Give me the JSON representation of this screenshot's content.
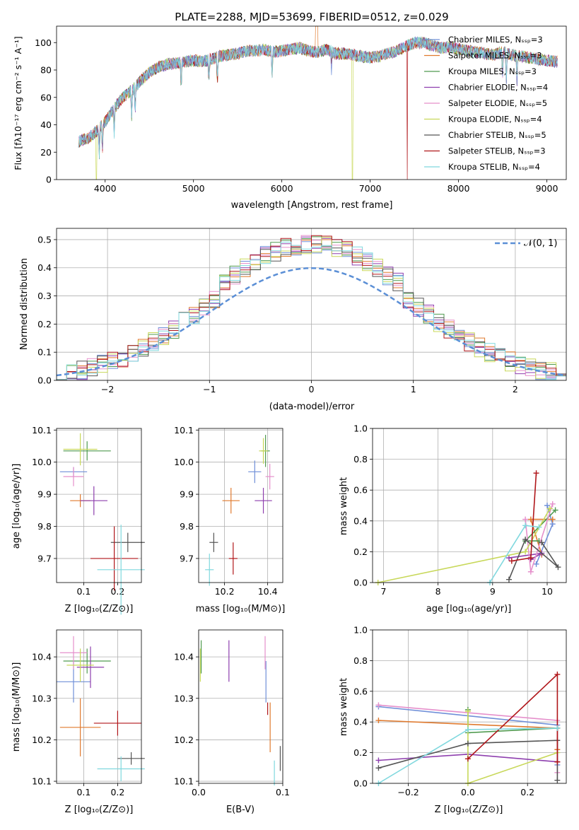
{
  "colors": [
    "#6f8fd8",
    "#e07a2e",
    "#4f9a4f",
    "#8e3fae",
    "#e58fcb",
    "#c8d85a",
    "#555555",
    "#b0161a",
    "#7fd8de"
  ],
  "normal_color": "#5b8fd6",
  "spectrum": {
    "type": "line",
    "title": "PLATE=2288, MJD=53699, FIBERID=0512, z=0.029",
    "xlabel": "wavelength [Angstrom, rest frame]",
    "ylabel": "Flux [fλ10⁻¹⁷ erg cm⁻² s⁻¹ A⁻¹]",
    "xlim": [
      3450,
      9220
    ],
    "ylim": [
      0,
      112
    ],
    "xticks": [
      "4000",
      "5000",
      "6000",
      "7000",
      "8000",
      "9000"
    ],
    "yticks": [
      "0",
      "20",
      "40",
      "60",
      "80",
      "100"
    ],
    "legend_position": "top-right",
    "legend": [
      "Chabrier MILES, Nₛₛₚ=3",
      "Salpeter MILES, Nₛₛₚ=3",
      "Kroupa MILES, Nₛₛₚ=3",
      "Chabrier ELODIE, Nₛₛₚ=4",
      "Salpeter ELODIE, Nₛₛₚ=5",
      "Kroupa ELODIE, Nₛₛₚ=4",
      "Chabrier STELIB, Nₛₛₚ=5",
      "Salpeter STELIB, Nₛₛₚ=3",
      "Kroupa STELIB, Nₛₛₚ=4"
    ],
    "continuum": [
      [
        3700,
        28
      ],
      [
        3800,
        30
      ],
      [
        3900,
        35
      ],
      [
        4000,
        42
      ],
      [
        4100,
        52
      ],
      [
        4200,
        60
      ],
      [
        4300,
        65
      ],
      [
        4400,
        72
      ],
      [
        4500,
        78
      ],
      [
        4600,
        82
      ],
      [
        4700,
        84
      ],
      [
        4800,
        85
      ],
      [
        4900,
        86
      ],
      [
        5000,
        87
      ],
      [
        5100,
        86
      ],
      [
        5200,
        88
      ],
      [
        5300,
        90
      ],
      [
        5400,
        91
      ],
      [
        5500,
        92
      ],
      [
        5600,
        94
      ],
      [
        5700,
        94
      ],
      [
        5800,
        95
      ],
      [
        5900,
        93
      ],
      [
        6000,
        94
      ],
      [
        6100,
        95
      ],
      [
        6200,
        96
      ],
      [
        6300,
        94
      ],
      [
        6400,
        93
      ],
      [
        6500,
        95
      ],
      [
        6600,
        92
      ],
      [
        6700,
        92
      ],
      [
        6800,
        91
      ],
      [
        6900,
        90
      ],
      [
        7000,
        89
      ],
      [
        7100,
        90
      ],
      [
        7200,
        92
      ],
      [
        7300,
        94
      ],
      [
        7400,
        97
      ],
      [
        7500,
        100
      ],
      [
        7600,
        100
      ],
      [
        7700,
        98
      ],
      [
        7800,
        96
      ],
      [
        7900,
        97
      ],
      [
        8000,
        95
      ],
      [
        8100,
        94
      ],
      [
        8200,
        93
      ],
      [
        8300,
        92
      ],
      [
        8400,
        91
      ],
      [
        8500,
        93
      ],
      [
        8600,
        91
      ],
      [
        8700,
        90
      ],
      [
        8800,
        89
      ],
      [
        8900,
        88
      ],
      [
        9000,
        87
      ],
      [
        9100,
        86
      ]
    ]
  },
  "histogram": {
    "type": "bar",
    "xlabel": "(data-model)/error",
    "ylabel": "Normed distribution",
    "xlim": [
      -2.5,
      2.5
    ],
    "ylim": [
      0,
      0.54
    ],
    "xticks": [
      "−2",
      "−1",
      "0",
      "1",
      "2"
    ],
    "yticks": [
      "0.0",
      "0.1",
      "0.2",
      "0.3",
      "0.4",
      "0.5"
    ],
    "legend": "𝒩(0, 1)",
    "legend_position": "top-right",
    "bin_width": 0.1,
    "bins_left": -2.5
  },
  "age_vs_Z": {
    "type": "scatter",
    "xlabel": "Z [log₁₀(Z/Z⊙)]",
    "ylabel": "age  [log₁₀(age/yr)]",
    "xlim": [
      0.02,
      0.27
    ],
    "ylim": [
      9.625,
      10.105
    ],
    "xticks": [
      "0.1",
      "0.2"
    ],
    "yticks": [
      "9.7",
      "9.8",
      "9.9",
      "10.0",
      "10.1"
    ],
    "points": [
      {
        "x": 0.07,
        "y": 9.97,
        "xe": 0.04,
        "ye": 0.015
      },
      {
        "x": 0.09,
        "y": 9.88,
        "xe": 0.03,
        "ye": 0.02
      },
      {
        "x": 0.11,
        "y": 10.035,
        "xe": 0.07,
        "ye": 0.03
      },
      {
        "x": 0.13,
        "y": 9.88,
        "xe": 0.04,
        "ye": 0.045
      },
      {
        "x": 0.07,
        "y": 9.955,
        "xe": 0.03,
        "ye": 0.03
      },
      {
        "x": 0.09,
        "y": 10.04,
        "xe": 0.05,
        "ye": 0.05
      },
      {
        "x": 0.23,
        "y": 9.75,
        "xe": 0.05,
        "ye": 0.03
      },
      {
        "x": 0.19,
        "y": 9.7,
        "xe": 0.07,
        "ye": 0.1
      },
      {
        "x": 0.21,
        "y": 9.665,
        "xe": 0.07,
        "ye": 0.14
      }
    ]
  },
  "age_vs_mass": {
    "type": "scatter",
    "xlabel": "mass [log₁₀(M/M⊙)]",
    "ylabel": "",
    "xlim": [
      10.08,
      10.47
    ],
    "ylim": [
      9.625,
      10.105
    ],
    "xticks": [
      "10.2",
      "10.4"
    ],
    "yticks": [
      "9.7",
      "9.8",
      "9.9",
      "10.0",
      "10.1"
    ],
    "points": [
      {
        "x": 10.34,
        "y": 9.97,
        "xe": 0.03,
        "ye": 0.035
      },
      {
        "x": 10.23,
        "y": 9.88,
        "xe": 0.04,
        "ye": 0.04
      },
      {
        "x": 10.39,
        "y": 10.035,
        "xe": 0.02,
        "ye": 0.05
      },
      {
        "x": 10.38,
        "y": 9.88,
        "xe": 0.04,
        "ye": 0.04
      },
      {
        "x": 10.41,
        "y": 9.955,
        "xe": 0.02,
        "ye": 0.04
      },
      {
        "x": 10.38,
        "y": 10.035,
        "xe": 0.02,
        "ye": 0.04
      },
      {
        "x": 10.15,
        "y": 9.75,
        "xe": 0.02,
        "ye": 0.03
      },
      {
        "x": 10.24,
        "y": 9.7,
        "xe": 0.02,
        "ye": 0.05
      },
      {
        "x": 10.13,
        "y": 9.665,
        "xe": 0.02,
        "ye": 0.05
      }
    ]
  },
  "weight_vs_age": {
    "type": "line",
    "xlabel": "age  [log₁₀(age/yr)]",
    "ylabel": "mass weight",
    "xlim": [
      6.8,
      10.35
    ],
    "ylim": [
      0,
      1.0
    ],
    "xticks": [
      "7",
      "8",
      "9",
      "10"
    ],
    "yticks": [
      "0.0",
      "0.2",
      "0.4",
      "0.6",
      "0.8",
      "1.0"
    ],
    "series": [
      {
        "x": [
          10.0,
          10.1,
          9.8
        ],
        "y": [
          0.5,
          0.38,
          0.12
        ]
      },
      {
        "x": [
          10.1,
          9.7,
          9.9
        ],
        "y": [
          0.41,
          0.41,
          0.18
        ]
      },
      {
        "x": [
          10.15,
          9.6,
          9.85
        ],
        "y": [
          0.47,
          0.27,
          0.27
        ]
      },
      {
        "x": [
          9.7,
          9.9,
          9.3
        ],
        "y": [
          0.15,
          0.19,
          0.16
        ]
      },
      {
        "x": [
          10.1,
          9.7,
          9.6
        ],
        "y": [
          0.51,
          0.07,
          0.41
        ]
      },
      {
        "x": [
          6.9,
          9.6,
          10.05
        ],
        "y": [
          0.0,
          0.2,
          0.48
        ]
      },
      {
        "x": [
          9.3,
          9.6,
          10.2,
          9.9
        ],
        "y": [
          0.02,
          0.28,
          0.1,
          0.26
        ]
      },
      {
        "x": [
          9.35,
          9.7,
          9.8
        ],
        "y": [
          0.14,
          0.16,
          0.71
        ]
      },
      {
        "x": [
          8.95,
          9.6,
          9.85
        ],
        "y": [
          0.0,
          0.37,
          0.36
        ]
      }
    ]
  },
  "mass_vs_Z": {
    "type": "scatter",
    "xlabel": "Z [log₁₀(Z/Z⊙)]",
    "ylabel": "mass [log₁₀(M/M⊙)]",
    "xlim": [
      0.02,
      0.27
    ],
    "ylim": [
      10.095,
      10.465
    ],
    "xticks": [
      "0.1",
      "0.2"
    ],
    "yticks": [
      "10.1",
      "10.2",
      "10.3",
      "10.4"
    ],
    "points": [
      {
        "x": 0.07,
        "y": 10.34,
        "xe": 0.05,
        "ye": 0.05
      },
      {
        "x": 0.09,
        "y": 10.23,
        "xe": 0.06,
        "ye": 0.07
      },
      {
        "x": 0.11,
        "y": 10.39,
        "xe": 0.07,
        "ye": 0.03
      },
      {
        "x": 0.12,
        "y": 10.375,
        "xe": 0.04,
        "ye": 0.05
      },
      {
        "x": 0.07,
        "y": 10.41,
        "xe": 0.04,
        "ye": 0.04
      },
      {
        "x": 0.09,
        "y": 10.38,
        "xe": 0.04,
        "ye": 0.04
      },
      {
        "x": 0.24,
        "y": 10.155,
        "xe": 0.04,
        "ye": 0.015
      },
      {
        "x": 0.2,
        "y": 10.24,
        "xe": 0.07,
        "ye": 0.03
      },
      {
        "x": 0.21,
        "y": 10.13,
        "xe": 0.07,
        "ye": 0.03
      }
    ]
  },
  "mass_vs_ebv": {
    "type": "scatter",
    "xlabel": "E(B-V)",
    "ylabel": "",
    "xlim": [
      0.0,
      0.1
    ],
    "ylim": [
      10.095,
      10.465
    ],
    "xticks": [
      "0.0",
      "0.1"
    ],
    "yticks": [
      "10.1",
      "10.2",
      "10.3",
      "10.4"
    ],
    "points": [
      {
        "x": 0.08,
        "y": 10.34,
        "xe": 0,
        "ye": 0.05
      },
      {
        "x": 0.085,
        "y": 10.23,
        "xe": 0,
        "ye": 0.06
      },
      {
        "x": 0.003,
        "y": 10.4,
        "xe": 0,
        "ye": 0.04
      },
      {
        "x": 0.036,
        "y": 10.39,
        "xe": 0,
        "ye": 0.05
      },
      {
        "x": 0.079,
        "y": 10.41,
        "xe": 0,
        "ye": 0.04
      },
      {
        "x": 0.002,
        "y": 10.38,
        "xe": 0,
        "ye": 0.04
      },
      {
        "x": 0.097,
        "y": 10.155,
        "xe": 0,
        "ye": 0.03
      },
      {
        "x": 0.082,
        "y": 10.275,
        "xe": 0,
        "ye": 0.015
      },
      {
        "x": 0.09,
        "y": 10.12,
        "xe": 0,
        "ye": 0.03
      }
    ]
  },
  "weight_vs_Z": {
    "type": "line",
    "xlabel": "Z [log₁₀(Z/Z⊙)]",
    "ylabel": "mass weight",
    "xlim": [
      -0.32,
      0.33
    ],
    "ylim": [
      0,
      1.0
    ],
    "xticks": [
      "−0.2",
      "0.0",
      "0.2"
    ],
    "yticks": [
      "0.0",
      "0.2",
      "0.4",
      "0.6",
      "0.8",
      "1.0"
    ],
    "series": [
      {
        "x": [
          -0.3,
          0.3,
          0.3
        ],
        "y": [
          0.5,
          0.38,
          0.12
        ]
      },
      {
        "x": [
          -0.3,
          0.3,
          0.3
        ],
        "y": [
          0.41,
          0.36,
          0.22
        ]
      },
      {
        "x": [
          0.0,
          0.0,
          0.3
        ],
        "y": [
          0.48,
          0.33,
          0.36
        ]
      },
      {
        "x": [
          -0.3,
          0.0,
          0.3
        ],
        "y": [
          0.15,
          0.19,
          0.14
        ]
      },
      {
        "x": [
          -0.3,
          0.3,
          0.3
        ],
        "y": [
          0.51,
          0.41,
          0.07
        ]
      },
      {
        "x": [
          0.0,
          0.0,
          0.3
        ],
        "y": [
          0.47,
          0.0,
          0.2
        ]
      },
      {
        "x": [
          -0.3,
          0.0,
          0.3,
          0.3
        ],
        "y": [
          0.1,
          0.26,
          0.28,
          0.02
        ]
      },
      {
        "x": [
          0.0,
          0.3,
          0.3
        ],
        "y": [
          0.16,
          0.71,
          0.14
        ]
      },
      {
        "x": [
          -0.3,
          0.0,
          0.3
        ],
        "y": [
          0.0,
          0.35,
          0.36
        ]
      }
    ]
  }
}
